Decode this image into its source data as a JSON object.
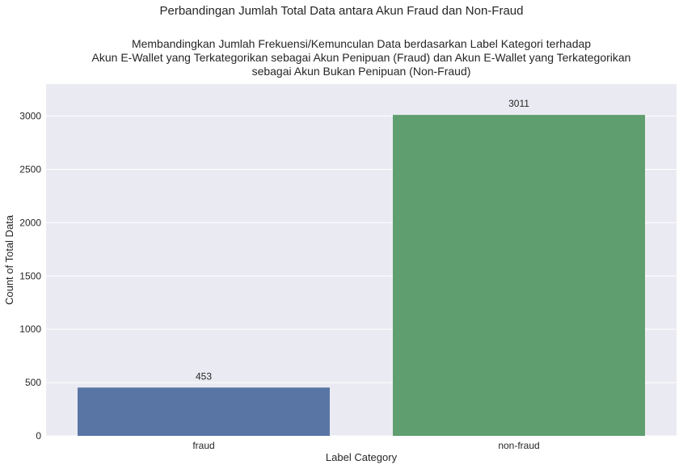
{
  "chart_data": {
    "type": "bar",
    "suptitle": "Perbandingan Jumlah Total Data antara Akun Fraud dan Non-Fraud",
    "title_lines": [
      "Membandingkan Jumlah Frekuensi/Kemunculan Data berdasarkan Label Kategori terhadap",
      "Akun E-Wallet yang Terkategorikan sebagai Akun Penipuan (Fraud) dan Akun E-Wallet yang Terkategorikan",
      "sebagai Akun Bukan Penipuan (Non-Fraud)"
    ],
    "xlabel": "Label Category",
    "ylabel": "Count of Total Data",
    "categories": [
      "fraud",
      "non-fraud"
    ],
    "values": [
      453,
      3011
    ],
    "data_labels": [
      "453",
      "3011"
    ],
    "colors": [
      "#5975a4",
      "#5f9e6e"
    ],
    "ylim": [
      0,
      3300
    ],
    "yticks": [
      0,
      500,
      1000,
      1500,
      2000,
      2500,
      3000
    ],
    "grid": true,
    "background": "#eaeaf2"
  }
}
